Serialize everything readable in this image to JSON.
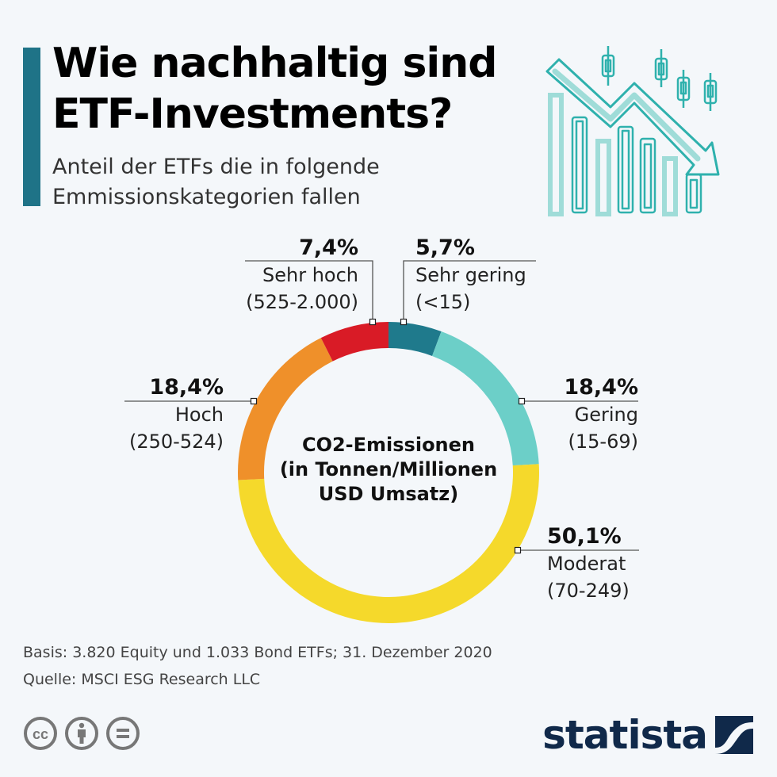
{
  "header": {
    "title_line1": "Wie nachhaltig sind",
    "title_line2": "ETF-Investments?",
    "subtitle_line1": "Anteil der ETFs die in folgende",
    "subtitle_line2": "Emmissionskategorien fallen",
    "accent_color": "#1f7387"
  },
  "chart_data": {
    "type": "pie",
    "variant": "donut",
    "title": "Wie nachhaltig sind ETF-Investments?",
    "subtitle": "Anteil der ETFs die in folgende Emmissionskategorien fallen",
    "center_label": [
      "CO2-Emissionen",
      "(in Tonnen/Millionen",
      "USD Umsatz)"
    ],
    "unit": "%",
    "slices": [
      {
        "name": "Sehr gering",
        "range": "(<15)",
        "value": 5.7,
        "label": "5,7%",
        "color": "#1f7a8c"
      },
      {
        "name": "Gering",
        "range": "(15-69)",
        "value": 18.4,
        "label": "18,4%",
        "color": "#6ccfc8"
      },
      {
        "name": "Moderat",
        "range": "(70-249)",
        "value": 50.1,
        "label": "50,1%",
        "color": "#f5d92b"
      },
      {
        "name": "Hoch",
        "range": "(250-524)",
        "value": 18.4,
        "label": "18,4%",
        "color": "#ef902a"
      },
      {
        "name": "Sehr hoch",
        "range": "(525-2.000)",
        "value": 7.4,
        "label": "7,4%",
        "color": "#d91b26"
      }
    ]
  },
  "footer": {
    "basis": "Basis: 3.820 Equity und 1.033 Bond ETFs; 31. Dezember 2020",
    "source": "Quelle: MSCI ESG Research LLC",
    "license_icons": [
      "cc-icon",
      "attribution-icon",
      "no-derivatives-icon"
    ],
    "brand": "statista",
    "brand_color": "#10294a"
  }
}
